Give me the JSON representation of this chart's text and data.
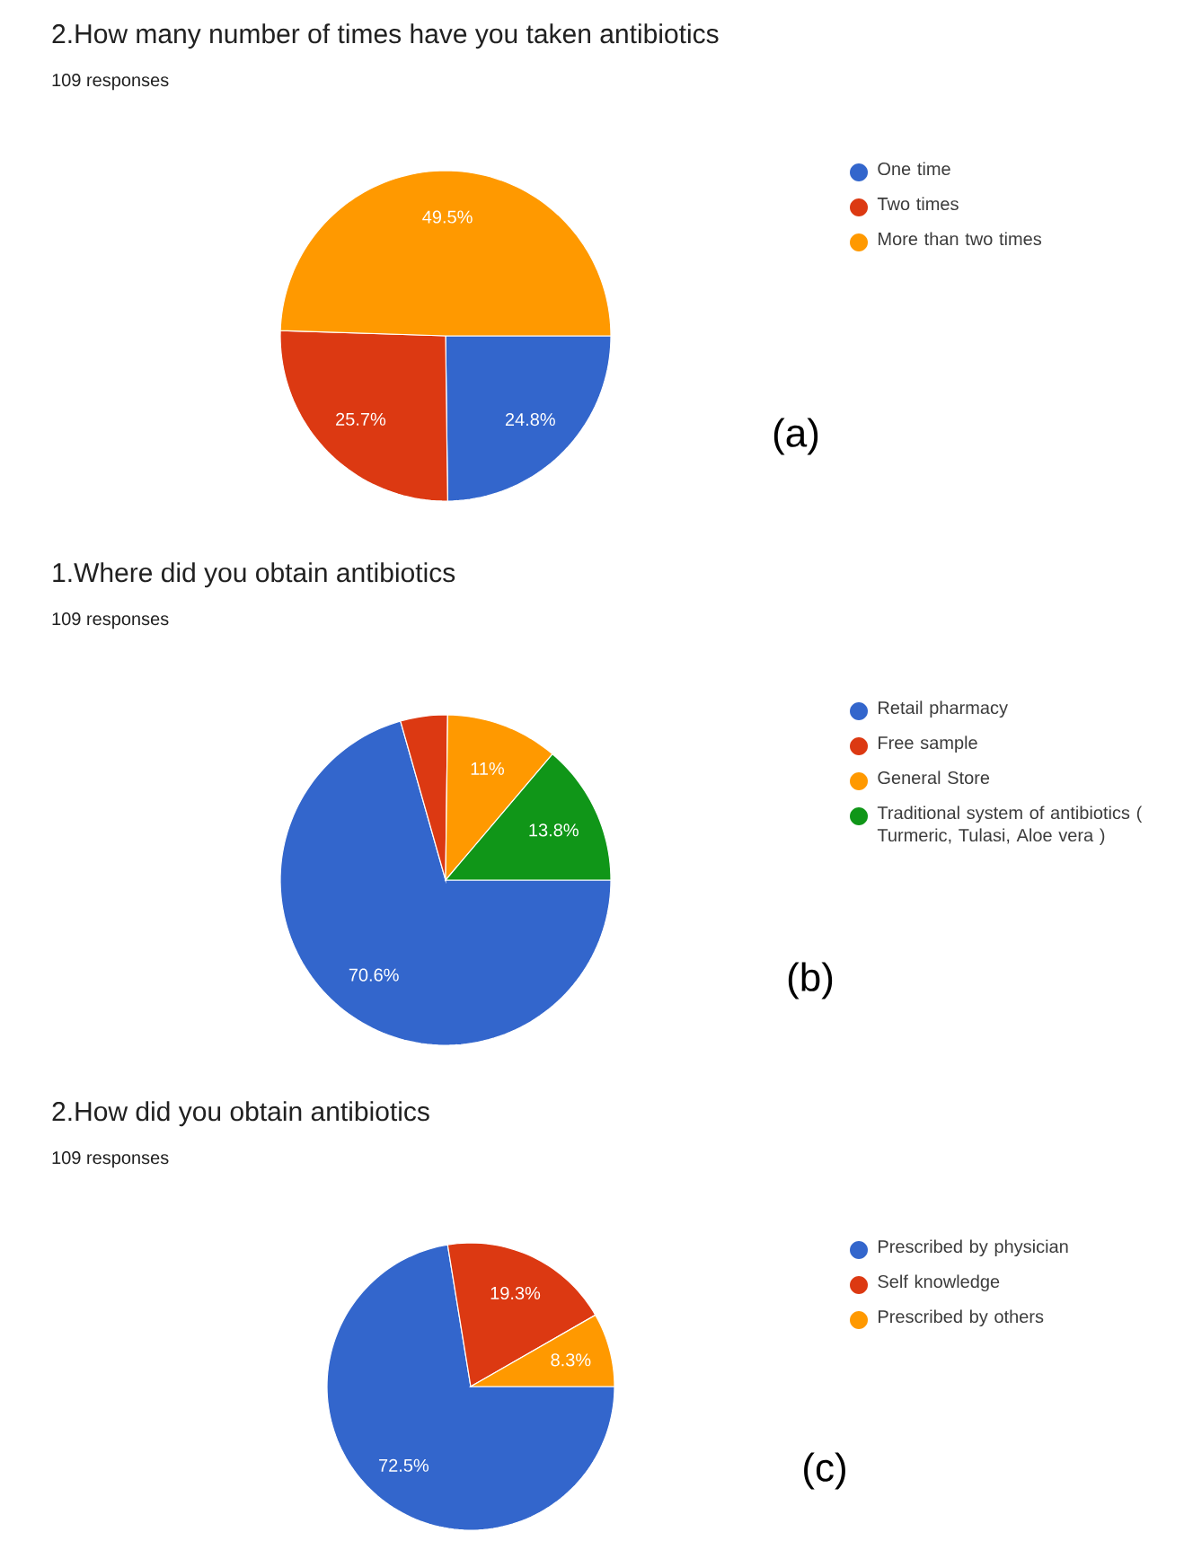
{
  "chart_data": [
    {
      "type": "pie",
      "title": "2.How many number of times have you taken antibiotics",
      "subtitle": "109 responses",
      "categories": [
        "One time",
        "Two times",
        "More than two times"
      ],
      "values": [
        24.8,
        25.7,
        49.5
      ],
      "colors": [
        "#3366cc",
        "#dc3912",
        "#ff9900"
      ],
      "value_labels": [
        "24.8%",
        "25.7%",
        "49.5%"
      ],
      "legend": "right",
      "annotations": [
        "(a)"
      ]
    },
    {
      "type": "pie",
      "title": "1.Where did you obtain antibiotics",
      "subtitle": "109 responses",
      "categories": [
        "Retail pharmacy",
        "Free sample",
        "General Store",
        "Traditional system of antibiotics ( Turmeric, Tulasi, Aloe vera )"
      ],
      "values": [
        70.6,
        4.6,
        11,
        13.8
      ],
      "colors": [
        "#3366cc",
        "#dc3912",
        "#ff9900",
        "#109618"
      ],
      "value_labels": [
        "70.6%",
        null,
        "11%",
        "13.8%"
      ],
      "legend": "right",
      "annotations": [
        "(b)"
      ]
    },
    {
      "type": "pie",
      "title": "2.How did you obtain antibiotics",
      "subtitle": "109 responses",
      "categories": [
        "Prescribed by physician",
        "Self knowledge",
        "Prescribed by others"
      ],
      "values": [
        72.5,
        19.3,
        8.3
      ],
      "colors": [
        "#3366cc",
        "#dc3912",
        "#ff9900"
      ],
      "value_labels": [
        "72.5%",
        "19.3%",
        "8.3%"
      ],
      "legend": "right",
      "annotations": [
        "(c)"
      ]
    }
  ]
}
